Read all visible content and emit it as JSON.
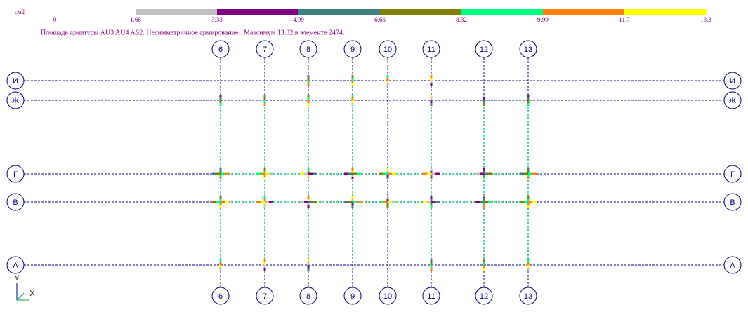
{
  "legend": {
    "unit": "см2",
    "ticks": [
      "0",
      "1.66",
      "3.33",
      "4.99",
      "6.66",
      "8.32",
      "9.99",
      "11.7",
      "13.3"
    ],
    "colors": [
      "#c0c0c0",
      "#800080",
      "#408080",
      "#808000",
      "#00ff80",
      "#ff8000",
      "#ffff00"
    ]
  },
  "caption": "Площадь арматуры AU3 AU4 AS2. Несимметричное армирование . Максимум 13.32 в элементе 2474.",
  "grid": {
    "columns": [
      "6",
      "7",
      "8",
      "9",
      "10",
      "11",
      "12",
      "13"
    ],
    "rows": [
      "И",
      "Ж",
      "Г",
      "В",
      "А"
    ]
  },
  "axes": {
    "y": "Y",
    "x": "X"
  }
}
